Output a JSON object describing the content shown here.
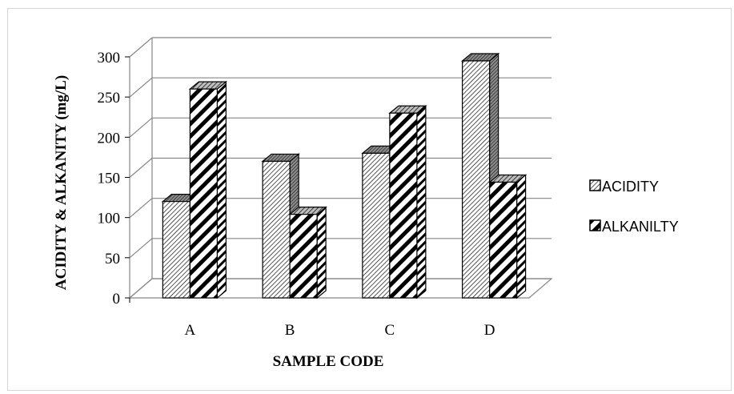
{
  "chart_data": {
    "type": "bar",
    "style": "3d-clustered",
    "categories": [
      "A",
      "B",
      "C",
      "D"
    ],
    "series": [
      {
        "name": "ACIDITY",
        "values": [
          120,
          170,
          180,
          295
        ],
        "pattern": "dense-diagonal-hatch"
      },
      {
        "name": "ALKANILTY",
        "values": [
          260,
          104,
          230,
          144
        ],
        "pattern": "wide-diagonal-stripes"
      }
    ],
    "xlabel": "SAMPLE CODE",
    "ylabel": "ACIDITY & ALKANITY (mg/L)",
    "ylim": [
      0,
      300
    ],
    "yticks": [
      0,
      50,
      100,
      150,
      200,
      250,
      300
    ],
    "grid": true,
    "legend_position": "right",
    "colors": {
      "ink": "#000000",
      "grid": "#868686",
      "frame": "#d6d6d6",
      "side_shade": "#808080"
    }
  }
}
